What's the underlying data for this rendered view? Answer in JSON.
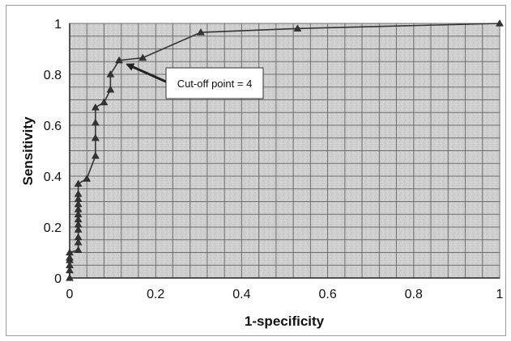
{
  "chart_data": {
    "type": "line",
    "title": "",
    "xlabel": "1-specificity",
    "ylabel": "Sensitivity",
    "xlim": [
      0,
      1
    ],
    "ylim": [
      0,
      1
    ],
    "x_ticks": [
      "0",
      "0.2",
      "0.4",
      "0.6",
      "0.8",
      "1"
    ],
    "y_ticks": [
      "0",
      "0.2",
      "0.4",
      "0.6",
      "0.8",
      "1"
    ],
    "grid": true,
    "marker": "triangle",
    "series": [
      {
        "points": [
          [
            0,
            0
          ],
          [
            0,
            0.03
          ],
          [
            0,
            0.05
          ],
          [
            0,
            0.07
          ],
          [
            0,
            0.08
          ],
          [
            0,
            0.1
          ],
          [
            0.02,
            0.11
          ],
          [
            0.02,
            0.14
          ],
          [
            0.02,
            0.16
          ],
          [
            0.02,
            0.19
          ],
          [
            0.02,
            0.21
          ],
          [
            0.02,
            0.23
          ],
          [
            0.02,
            0.25
          ],
          [
            0.02,
            0.27
          ],
          [
            0.02,
            0.29
          ],
          [
            0.02,
            0.31
          ],
          [
            0.02,
            0.33
          ],
          [
            0.02,
            0.37
          ],
          [
            0.04,
            0.39
          ],
          [
            0.06,
            0.48
          ],
          [
            0.06,
            0.55
          ],
          [
            0.06,
            0.61
          ],
          [
            0.06,
            0.67
          ],
          [
            0.08,
            0.69
          ],
          [
            0.095,
            0.74
          ],
          [
            0.095,
            0.8
          ],
          [
            0.115,
            0.855
          ],
          [
            0.17,
            0.865
          ],
          [
            0.305,
            0.965
          ],
          [
            0.53,
            0.98
          ],
          [
            1,
            1
          ]
        ]
      }
    ],
    "annotation": {
      "text": "Cut-off point = 4",
      "target": [
        0.115,
        0.855
      ]
    }
  }
}
